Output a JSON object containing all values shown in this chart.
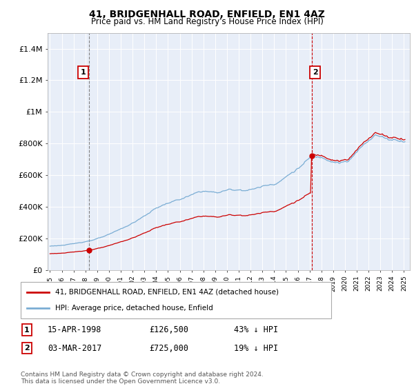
{
  "title": "41, BRIDGENHALL ROAD, ENFIELD, EN1 4AZ",
  "subtitle": "Price paid vs. HM Land Registry's House Price Index (HPI)",
  "sale1_date_label": "15-APR-1998",
  "sale1_price": 126500,
  "sale1_year": 1998.29,
  "sale1_pct": "43% ↓ HPI",
  "sale2_date_label": "03-MAR-2017",
  "sale2_price": 725000,
  "sale2_year": 2017.17,
  "sale2_pct": "19% ↓ HPI",
  "legend1": "41, BRIDGENHALL ROAD, ENFIELD, EN1 4AZ (detached house)",
  "legend2": "HPI: Average price, detached house, Enfield",
  "footnote": "Contains HM Land Registry data © Crown copyright and database right 2024.\nThis data is licensed under the Open Government Licence v3.0.",
  "red_color": "#cc0000",
  "blue_color": "#7aadd4",
  "chart_bg": "#e8eef8",
  "ylim": [
    0,
    1500000
  ],
  "xlim_start": 1994.8,
  "xlim_end": 2025.5,
  "box1_label": "1",
  "box2_label": "2",
  "yticks": [
    0,
    200000,
    400000,
    600000,
    800000,
    1000000,
    1200000,
    1400000
  ],
  "ylabels": [
    "£0",
    "£200K",
    "£400K",
    "£600K",
    "£800K",
    "£1M",
    "£1.2M",
    "£1.4M"
  ]
}
